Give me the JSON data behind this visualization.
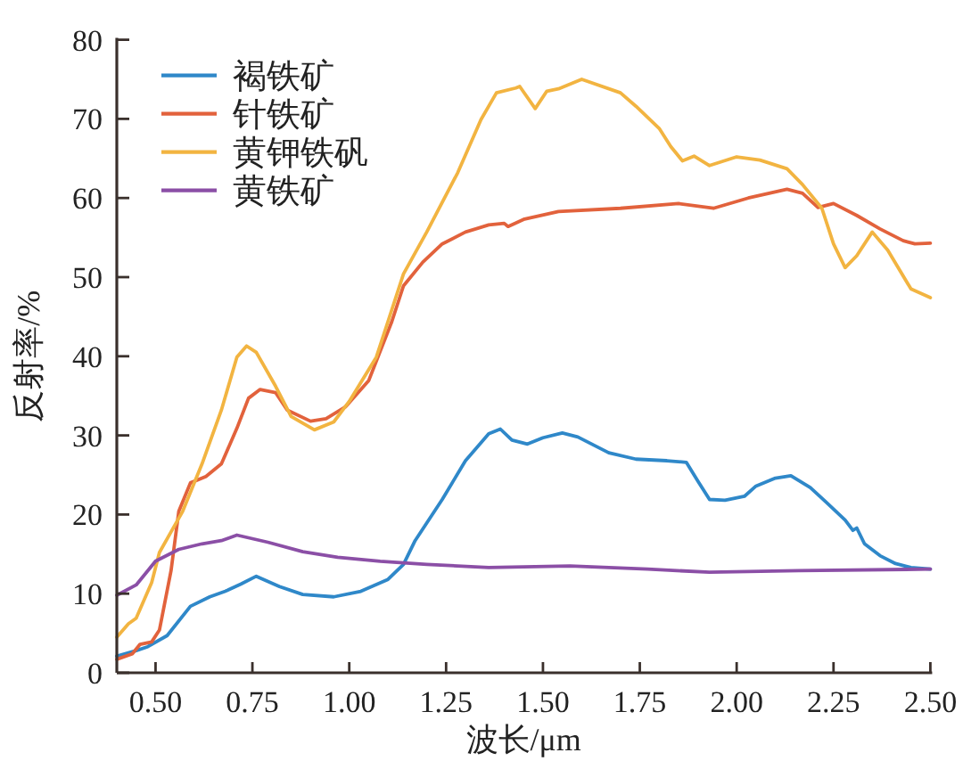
{
  "chart_data": {
    "type": "line",
    "xlabel": "波长/μm",
    "ylabel": "反射率/%",
    "xlim": [
      0.4,
      2.5
    ],
    "ylim": [
      0,
      80
    ],
    "xticks": [
      {
        "value": 0.5,
        "label": "0.50"
      },
      {
        "value": 0.75,
        "label": "0.75"
      },
      {
        "value": 1.0,
        "label": "1.00"
      },
      {
        "value": 1.25,
        "label": "1.25"
      },
      {
        "value": 1.5,
        "label": "1.50"
      },
      {
        "value": 1.75,
        "label": "1.75"
      },
      {
        "value": 2.0,
        "label": "2.00"
      },
      {
        "value": 2.25,
        "label": "2.25"
      },
      {
        "value": 2.5,
        "label": "2.50"
      }
    ],
    "yticks": [
      0,
      10,
      20,
      30,
      40,
      50,
      60,
      70,
      80
    ],
    "legend": "top left",
    "series": [
      {
        "name": "褐铁矿",
        "color": "#2f88c9",
        "x": [
          0.4,
          0.45,
          0.48,
          0.53,
          0.59,
          0.64,
          0.68,
          0.72,
          0.76,
          0.82,
          0.88,
          0.96,
          1.03,
          1.1,
          1.14,
          1.17,
          1.24,
          1.3,
          1.36,
          1.39,
          1.42,
          1.46,
          1.5,
          1.55,
          1.59,
          1.67,
          1.74,
          1.82,
          1.87,
          1.9,
          1.93,
          1.97,
          2.02,
          2.05,
          2.1,
          2.14,
          2.19,
          2.23,
          2.28,
          2.3,
          2.31,
          2.33,
          2.37,
          2.41,
          2.45,
          2.5
        ],
        "values": [
          2.1,
          2.8,
          3.3,
          4.7,
          8.4,
          9.6,
          10.3,
          11.2,
          12.2,
          10.9,
          9.9,
          9.6,
          10.3,
          11.8,
          13.7,
          16.7,
          21.9,
          26.8,
          30.2,
          30.8,
          29.4,
          28.9,
          29.7,
          30.3,
          29.8,
          27.8,
          27.0,
          26.8,
          26.6,
          24.2,
          21.9,
          21.8,
          22.3,
          23.6,
          24.6,
          24.9,
          23.4,
          21.6,
          19.3,
          18.0,
          18.3,
          16.3,
          14.8,
          13.8,
          13.3,
          13.1
        ]
      },
      {
        "name": "针铁矿",
        "color": "#e2623c",
        "x": [
          0.4,
          0.44,
          0.46,
          0.49,
          0.51,
          0.54,
          0.56,
          0.59,
          0.63,
          0.67,
          0.71,
          0.74,
          0.77,
          0.81,
          0.84,
          0.9,
          0.94,
          0.99,
          1.05,
          1.11,
          1.14,
          1.19,
          1.24,
          1.3,
          1.36,
          1.4,
          1.41,
          1.45,
          1.54,
          1.7,
          1.85,
          1.94,
          2.03,
          2.13,
          2.17,
          2.21,
          2.25,
          2.31,
          2.37,
          2.43,
          2.46,
          2.5
        ],
        "values": [
          1.7,
          2.4,
          3.6,
          3.9,
          5.4,
          12.9,
          20.4,
          24.0,
          24.8,
          26.4,
          30.9,
          34.7,
          35.8,
          35.4,
          33.2,
          31.8,
          32.1,
          33.6,
          36.9,
          44.4,
          48.9,
          51.9,
          54.2,
          55.7,
          56.6,
          56.8,
          56.4,
          57.3,
          58.3,
          58.7,
          59.3,
          58.7,
          60.0,
          61.1,
          60.6,
          58.8,
          59.3,
          57.8,
          56.1,
          54.6,
          54.2,
          54.3
        ]
      },
      {
        "name": "黄钾铁矾",
        "color": "#f2b441",
        "x": [
          0.4,
          0.43,
          0.45,
          0.49,
          0.51,
          0.54,
          0.57,
          0.62,
          0.67,
          0.71,
          0.735,
          0.76,
          0.81,
          0.85,
          0.91,
          0.96,
          1.0,
          1.07,
          1.1,
          1.14,
          1.2,
          1.28,
          1.34,
          1.38,
          1.43,
          1.44,
          1.48,
          1.51,
          1.54,
          1.6,
          1.7,
          1.74,
          1.8,
          1.83,
          1.86,
          1.89,
          1.93,
          2.0,
          2.06,
          2.13,
          2.17,
          2.22,
          2.25,
          2.28,
          2.31,
          2.35,
          2.39,
          2.45,
          2.5
        ],
        "values": [
          4.5,
          6.2,
          6.9,
          11.4,
          15.2,
          17.8,
          20.4,
          26.4,
          33.2,
          39.9,
          41.3,
          40.5,
          36.2,
          32.4,
          30.7,
          31.7,
          34.3,
          39.9,
          44.4,
          50.4,
          55.7,
          63.2,
          69.9,
          73.3,
          73.9,
          74.1,
          71.3,
          73.5,
          73.8,
          75.0,
          73.3,
          71.6,
          68.8,
          66.5,
          64.7,
          65.3,
          64.1,
          65.2,
          64.8,
          63.7,
          61.7,
          58.7,
          54.2,
          51.2,
          52.7,
          55.7,
          53.4,
          48.5,
          47.4
        ]
      },
      {
        "name": "黄铁矿",
        "color": "#8b4fa6",
        "x": [
          0.4,
          0.45,
          0.5,
          0.56,
          0.62,
          0.67,
          0.71,
          0.79,
          0.88,
          0.97,
          1.08,
          1.2,
          1.36,
          1.57,
          1.77,
          1.93,
          2.16,
          2.5
        ],
        "values": [
          9.8,
          11.1,
          14.1,
          15.6,
          16.3,
          16.7,
          17.4,
          16.5,
          15.3,
          14.6,
          14.1,
          13.7,
          13.3,
          13.5,
          13.1,
          12.7,
          12.9,
          13.1
        ]
      }
    ]
  }
}
